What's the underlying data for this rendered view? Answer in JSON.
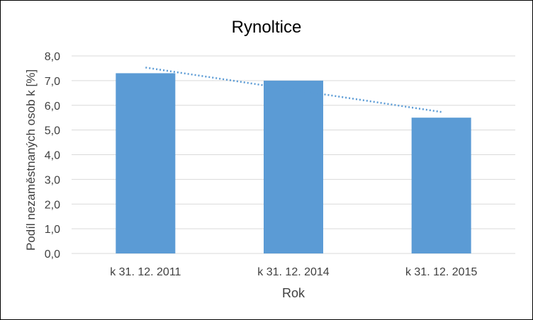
{
  "chart_data": {
    "type": "bar",
    "title": "Rynoltice",
    "xlabel": "Rok",
    "ylabel": "Podíl nezaměstnaných osob k [%]",
    "categories": [
      "k 31. 12. 2011",
      "k 31. 12. 2014",
      "k 31. 12. 2015"
    ],
    "values": [
      7.3,
      7.0,
      5.5
    ],
    "ylim": [
      0,
      8
    ],
    "yticks": [
      "0,0",
      "1,0",
      "2,0",
      "3,0",
      "4,0",
      "5,0",
      "6,0",
      "7,0",
      "8,0"
    ],
    "grid": true,
    "legend": "none",
    "trendline": {
      "type": "linear",
      "style": "dotted",
      "start": 7.53,
      "end": 5.73
    },
    "colors": {
      "bar": "#5b9bd5",
      "trendline": "#5b9bd5",
      "grid": "#d9d9d9",
      "text": "#404040"
    }
  }
}
